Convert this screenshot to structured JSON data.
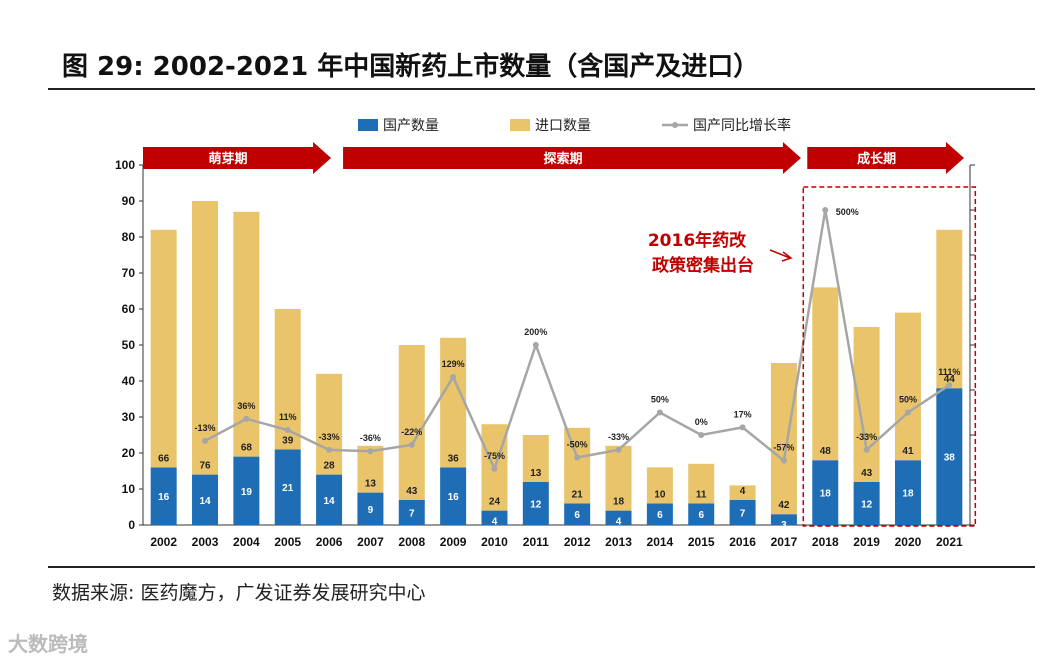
{
  "title": "图 29:  2002-2021 年中国新药上市数量（含国产及进口）",
  "source": "数据来源:  医药魔方，广发证券发展研究中心",
  "watermark": "大数跨境",
  "colors": {
    "domestic": "#1f6eb5",
    "imported": "#e9c46a",
    "growth": "#a6a6a6",
    "phase": "#c00000",
    "annotation": "#c00000"
  },
  "chart_data": {
    "type": "bar",
    "stacked": true,
    "title": "2002-2021 年中国新药上市数量（含国产及进口）",
    "categories": [
      "2002",
      "2003",
      "2004",
      "2005",
      "2006",
      "2007",
      "2008",
      "2009",
      "2010",
      "2011",
      "2012",
      "2013",
      "2014",
      "2015",
      "2016",
      "2017",
      "2018",
      "2019",
      "2020",
      "2021"
    ],
    "series": [
      {
        "name": "国产数量",
        "type": "bar",
        "values": [
          16,
          14,
          19,
          21,
          14,
          9,
          7,
          16,
          4,
          12,
          6,
          4,
          6,
          6,
          7,
          3,
          18,
          12,
          18,
          38
        ]
      },
      {
        "name": "进口数量",
        "type": "bar",
        "values": [
          66,
          76,
          68,
          39,
          28,
          13,
          43,
          36,
          24,
          13,
          21,
          18,
          10,
          11,
          4,
          42,
          48,
          43,
          41,
          44
        ]
      },
      {
        "name": "国产同比增长率",
        "type": "line",
        "axis": "secondary",
        "values": [
          null,
          -13,
          36,
          11,
          -33,
          -36,
          -22,
          129,
          -75,
          200,
          -50,
          -33,
          50,
          0,
          17,
          -57,
          500,
          -33,
          50,
          111
        ],
        "labels": [
          "",
          "-13%",
          "36%",
          "11%",
          "-33%",
          "-36%",
          "-22%",
          "129%",
          "-75%",
          "200%",
          "-50%",
          "-33%",
          "50%",
          "0%",
          "17%",
          "-57%",
          "500%",
          "-33%",
          "50%",
          "111%"
        ]
      }
    ],
    "ylim": [
      0,
      100
    ],
    "yticks": [
      0,
      10,
      20,
      30,
      40,
      50,
      60,
      70,
      80,
      90,
      100
    ],
    "y2lim": [
      -200,
      600
    ],
    "legend_position": "top-center",
    "phases": [
      {
        "label": "萌芽期",
        "from": "2002",
        "to": "2006"
      },
      {
        "label": "探索期",
        "from": "2006",
        "to": "2017"
      },
      {
        "label": "成长期",
        "from": "2018",
        "to": "2021"
      }
    ],
    "annotation": {
      "lines": [
        "2016年药改",
        "政策密集出台"
      ],
      "highlight": [
        "2018",
        "2021"
      ]
    }
  }
}
